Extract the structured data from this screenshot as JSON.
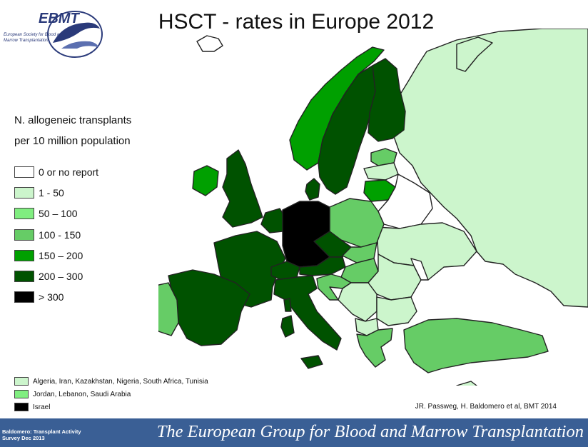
{
  "title": "HSCT - rates in Europe 2012",
  "logo": {
    "name": "EBMT",
    "subtitle_line1": "European Society for Blood and",
    "subtitle_line2": "Marrow Transplantation"
  },
  "legend": {
    "title_line1": "N. allogeneic transplants",
    "title_line2": "per 10 million population",
    "items": [
      {
        "label": "0 or no report",
        "color": "#ffffff"
      },
      {
        "label": "1 - 50",
        "color": "#ccf5cc"
      },
      {
        "label": "50 – 100",
        "color": "#80ee80"
      },
      {
        "label": "100 - 150",
        "color": "#66cc66"
      },
      {
        "label": "150 – 200",
        "color": "#00a000"
      },
      {
        "label": "200 – 300",
        "color": "#005200"
      },
      {
        "label": "> 300",
        "color": "#000000"
      }
    ]
  },
  "notes": [
    {
      "label": "Algeria, Iran, Kazakhstan, Nigeria, South Africa, Tunisia",
      "color": "#ccf5cc"
    },
    {
      "label": "Jordan, Lebanon, Saudi Arabia",
      "color": "#80ee80"
    },
    {
      "label": "Israel",
      "color": "#000000"
    }
  ],
  "credit": "JR. Passweg, H. Baldomero et al, BMT 2014",
  "footer": {
    "left_line1": "Baldomero: Transplant Activity",
    "left_line2": "Survey Dec 2013",
    "right": "The European Group for Blood and Marrow Transplantation"
  }
}
